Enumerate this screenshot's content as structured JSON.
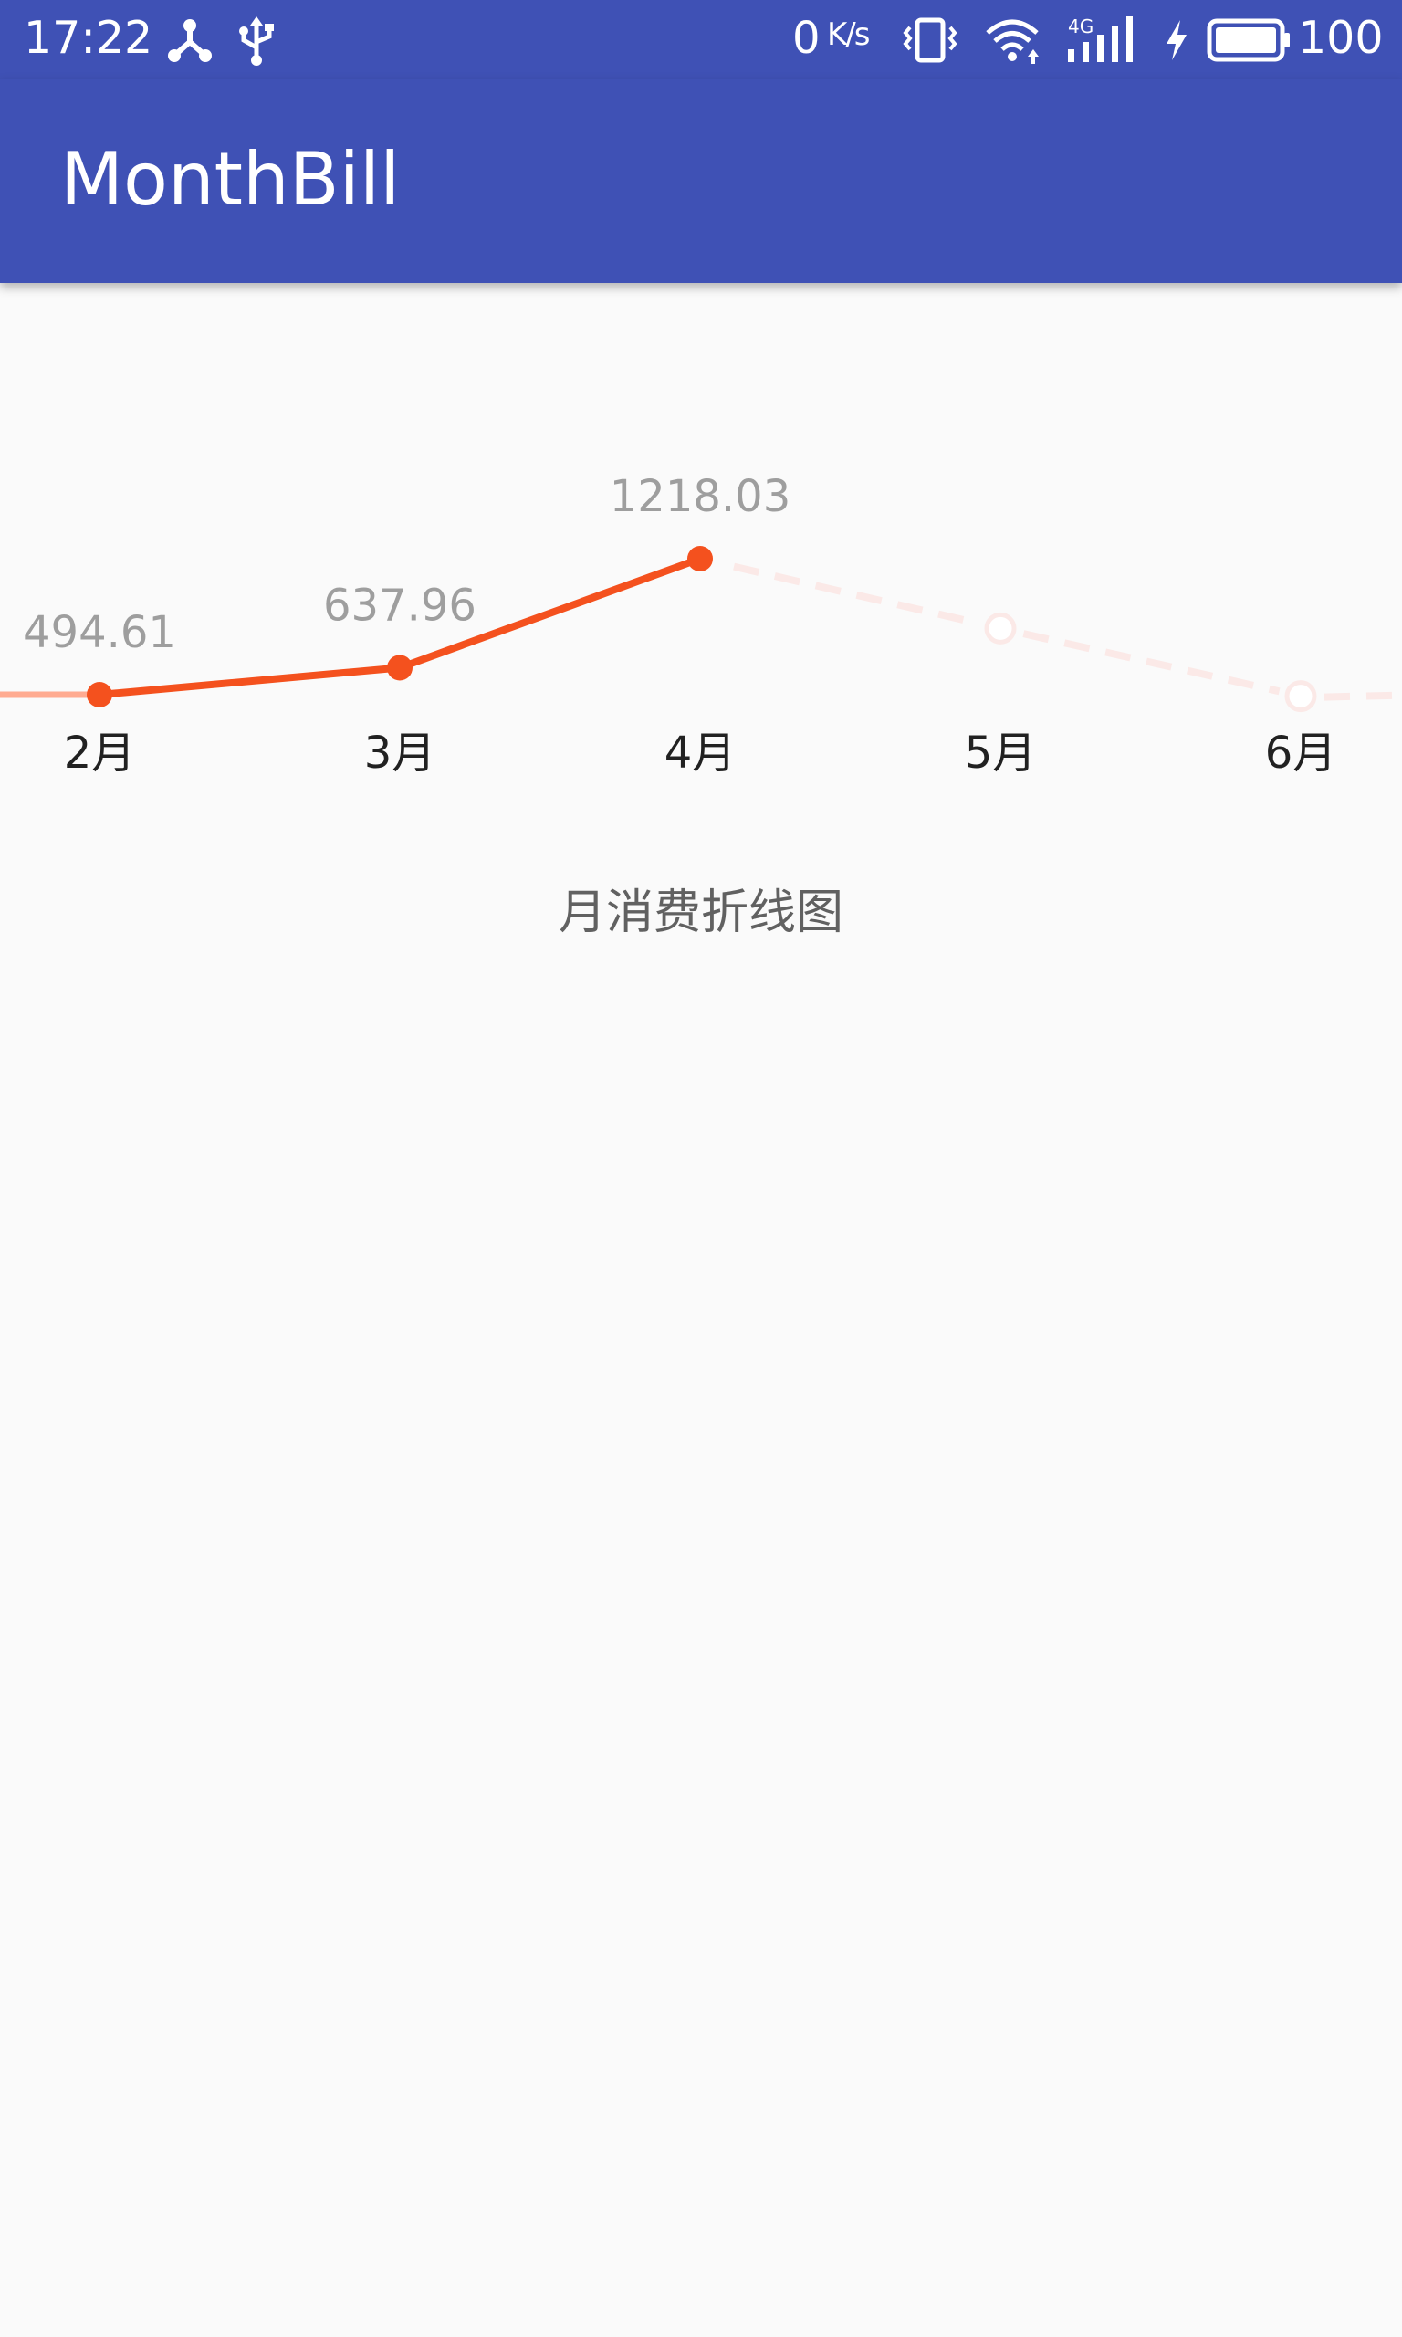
{
  "status_bar": {
    "time": "17:22",
    "net_speed": "0",
    "net_speed_unit": "K/s",
    "network_type": "4G",
    "battery_level": "100",
    "icons": [
      "share-network-icon",
      "usb-icon",
      "vibrate-icon",
      "wifi-icon",
      "signal-4g-icon",
      "charging-icon",
      "battery-icon"
    ]
  },
  "app_bar": {
    "title": "MonthBill"
  },
  "chart_caption": "月消费折线图",
  "colors": {
    "primary": "#3f51b5",
    "line": "#f4511e",
    "line_faded": "#ffab91",
    "future": "#fbe9e7",
    "label_text": "#9e9e9e",
    "month_text": "#212121"
  },
  "chart_data": {
    "type": "line",
    "categories": [
      "2月",
      "3月",
      "4月",
      "5月",
      "6月"
    ],
    "series": [
      {
        "values": [
          494.61,
          637.96,
          1218.03,
          847.1,
          486.9
        ]
      }
    ],
    "data_labels": [
      "494.61",
      "637.96",
      "1218.03",
      "",
      ""
    ],
    "recorded_points": 3,
    "title": "月消费折线图",
    "xlabel": "",
    "ylabel": "",
    "grid": false,
    "legend": "none"
  }
}
